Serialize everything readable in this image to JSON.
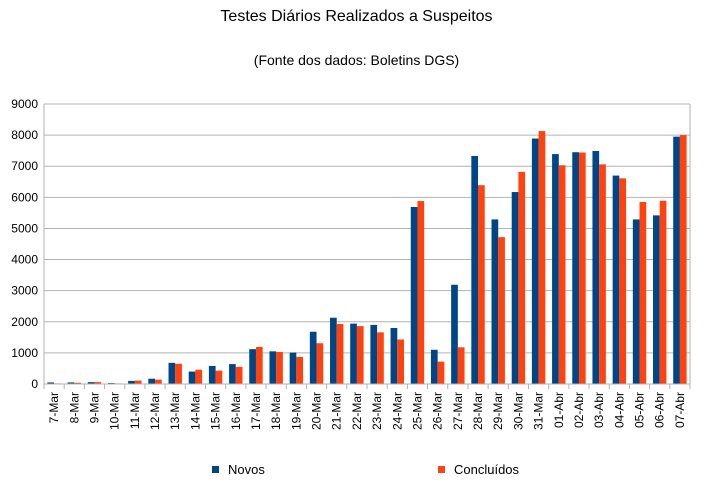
{
  "chart_data": {
    "type": "bar",
    "title": "Testes Diários Realizados a Suspeitos",
    "subtitle": "(Fonte dos dados: Boletins DGS)",
    "categories": [
      "7-Mar",
      "8-Mar",
      "9-Mar",
      "10-Mar",
      "11-Mar",
      "12-Mar",
      "13-Mar",
      "14-Mar",
      "15-Mar",
      "16-Mar",
      "17-Mar",
      "18-Mar",
      "19-Mar",
      "20-Mar",
      "21-Mar",
      "22-Mar",
      "23-Mar",
      "24-Mar",
      "25-Mar",
      "26-Mar",
      "27-Mar",
      "28-Mar",
      "29-Mar",
      "30-Mar",
      "31-Mar",
      "01-Abr",
      "02-Abr",
      "03-Abr",
      "04-Abr",
      "05-Abr",
      "06-Abr",
      "07-Abr"
    ],
    "series": [
      {
        "name": "Novos",
        "color": "#004586",
        "values": [
          50,
          50,
          60,
          30,
          100,
          170,
          680,
          400,
          580,
          640,
          1120,
          1050,
          1010,
          1680,
          2130,
          1940,
          1900,
          1800,
          5690,
          1100,
          3190,
          7330,
          5290,
          6170,
          7890,
          7390,
          7450,
          7490,
          6700,
          5290,
          5420,
          7950
        ]
      },
      {
        "name": "Concluídos",
        "color": "#ff420e",
        "values": [
          20,
          40,
          60,
          20,
          110,
          140,
          650,
          460,
          430,
          550,
          1190,
          1030,
          870,
          1310,
          1930,
          1860,
          1660,
          1430,
          5880,
          720,
          1180,
          6390,
          4720,
          6820,
          8130,
          7030,
          7440,
          7060,
          6610,
          5850,
          5890,
          8000
        ]
      }
    ],
    "ylim": [
      0,
      9000
    ],
    "yticks": [
      0,
      1000,
      2000,
      3000,
      4000,
      5000,
      6000,
      7000,
      8000,
      9000
    ],
    "grid": true,
    "legend": "bottom"
  }
}
